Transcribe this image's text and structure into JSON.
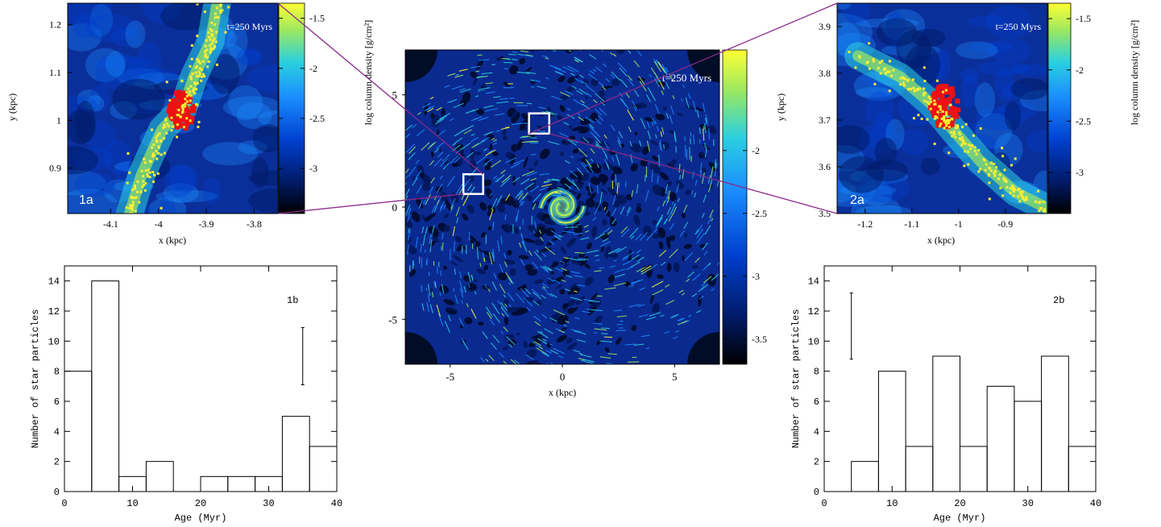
{
  "colors": {
    "colormap": [
      "#000000",
      "#001a66",
      "#0040d0",
      "#1a8cff",
      "#2ad0e0",
      "#9be860",
      "#ffff33"
    ],
    "star_particle": "#ffee33",
    "young_star": "#ee1111",
    "connector": "#8a2a8a",
    "box": "#ffffff"
  },
  "chart_data": [
    {
      "id": "panel-1a",
      "type": "heatmap",
      "label": "1a",
      "time_label": "t=250 Myrs",
      "xlabel": "x (kpc)",
      "ylabel": "y (kpc)",
      "xlim": [
        -4.19,
        -3.75
      ],
      "ylim": [
        0.805,
        1.245
      ],
      "xticks": [
        -4.1,
        -4,
        -3.9,
        -3.8
      ],
      "yticks": [
        0.9,
        1,
        1.1,
        1.2
      ],
      "colorbar": {
        "label": "log column density [g/cm²]",
        "range": [
          -3.45,
          -1.35
        ],
        "ticks": [
          -3,
          -2.5,
          -2,
          -1.5
        ]
      }
    },
    {
      "id": "panel-2a",
      "type": "heatmap",
      "label": "2a",
      "time_label": "t=250 Myrs",
      "xlabel": "x (kpc)",
      "ylabel": "y (kpc)",
      "xlim": [
        -1.26,
        -0.81
      ],
      "ylim": [
        3.5,
        3.95
      ],
      "xticks": [
        -1.2,
        -1.1,
        -1,
        -0.9
      ],
      "yticks": [
        3.5,
        3.6,
        3.7,
        3.8,
        3.9
      ],
      "colorbar": {
        "label": "log column density [g/cm²]",
        "range": [
          -3.4,
          -1.35
        ],
        "ticks": [
          -3,
          -2.5,
          -2,
          -1.5
        ]
      }
    },
    {
      "id": "panel-main",
      "type": "heatmap",
      "time_label": "t=250 Myrs",
      "xlabel": "x (kpc)",
      "ylabel": "",
      "xlim": [
        -7,
        7
      ],
      "ylim": [
        -7,
        7
      ],
      "xticks": [
        -5,
        0,
        5
      ],
      "yticks": [
        -5,
        0,
        5
      ],
      "boxes": [
        {
          "x0": -4.19,
          "x1": -3.75,
          "y0": 0.805,
          "y1": 1.245
        },
        {
          "x0": -1.26,
          "x1": -0.81,
          "y0": 3.5,
          "y1": 3.95
        }
      ],
      "colorbar": {
        "range": [
          -3.7,
          -1.2
        ],
        "ticks": [
          -3.5,
          -3,
          -2.5,
          -2
        ]
      }
    },
    {
      "id": "hist-1b",
      "type": "bar",
      "label": "1b",
      "xlabel": "Age (Myr)",
      "ylabel": "Number of star particles",
      "bin_edges": [
        0,
        4,
        8,
        12,
        16,
        20,
        24,
        28,
        32,
        36,
        40
      ],
      "values": [
        8,
        14,
        1,
        2,
        0,
        1,
        1,
        1,
        5,
        3
      ],
      "xlim": [
        0,
        40
      ],
      "ylim": [
        0,
        15
      ],
      "xticks": [
        0,
        10,
        20,
        30,
        40
      ],
      "yticks": [
        0,
        2,
        4,
        6,
        8,
        10,
        12,
        14
      ],
      "error_bar": {
        "x": 35,
        "low": 7.1,
        "high": 10.9
      }
    },
    {
      "id": "hist-2b",
      "type": "bar",
      "label": "2b",
      "xlabel": "Age (Myr)",
      "ylabel": "Number of star particles",
      "bin_edges": [
        0,
        4,
        8,
        12,
        16,
        20,
        24,
        28,
        32,
        36,
        40
      ],
      "values": [
        0,
        2,
        8,
        3,
        9,
        3,
        7,
        6,
        9,
        3
      ],
      "xlim": [
        0,
        40
      ],
      "ylim": [
        0,
        15
      ],
      "xticks": [
        0,
        10,
        20,
        30,
        40
      ],
      "yticks": [
        0,
        2,
        4,
        6,
        8,
        10,
        12,
        14
      ],
      "error_bar": {
        "x": 4,
        "low": 8.8,
        "high": 13.2
      }
    }
  ]
}
